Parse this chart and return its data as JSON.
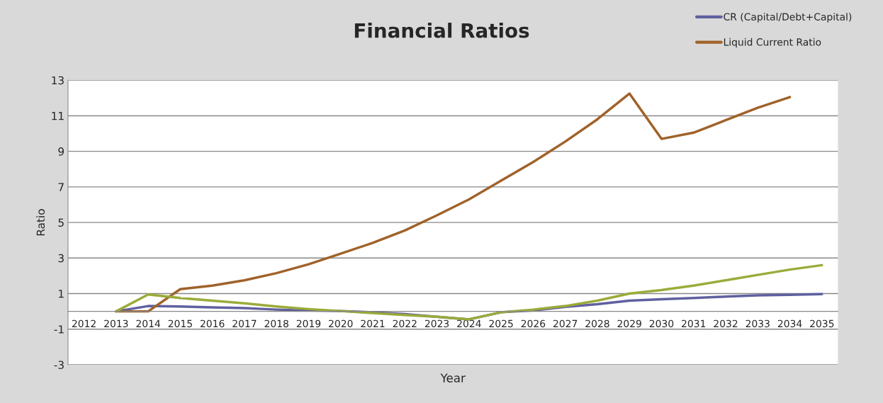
{
  "chart_data": {
    "type": "line",
    "title": "Financial Ratios",
    "xlabel": "Year",
    "ylabel": "Ratio",
    "categories": [
      "2012",
      "2013",
      "2014",
      "2015",
      "2016",
      "2017",
      "2018",
      "2019",
      "2020",
      "2021",
      "2022",
      "2023",
      "2024",
      "2025",
      "2026",
      "2027",
      "2028",
      "2029",
      "2030",
      "2031",
      "2032",
      "2033",
      "2034",
      "2035"
    ],
    "series": [
      {
        "name": "CR (Capital/Debt+Capital)",
        "color": "#6060a0",
        "values": [
          null,
          0,
          0.3,
          0.27,
          0.22,
          0.18,
          0.1,
          0.05,
          0.02,
          -0.05,
          -0.15,
          -0.3,
          -0.45,
          -0.05,
          0.05,
          0.25,
          0.4,
          0.6,
          0.68,
          0.75,
          0.83,
          0.9,
          0.93,
          0.97
        ]
      },
      {
        "name": "Liquid Current Ratio",
        "color": "#a0622a",
        "values": [
          null,
          0,
          0,
          1.25,
          1.45,
          1.75,
          2.15,
          2.65,
          3.25,
          3.85,
          4.55,
          5.4,
          6.3,
          7.35,
          8.4,
          9.55,
          10.8,
          12.25,
          9.7,
          10.05,
          10.75,
          11.45,
          12.05,
          null
        ]
      },
      {
        "color": "#9bab3a",
        "values": [
          null,
          0,
          0.95,
          0.75,
          0.6,
          0.45,
          0.27,
          0.13,
          0.02,
          -0.1,
          -0.2,
          -0.3,
          -0.45,
          -0.05,
          0.1,
          0.3,
          0.6,
          1.0,
          1.2,
          1.45,
          1.75,
          2.05,
          2.35,
          2.6
        ]
      }
    ],
    "ylim": [
      -3,
      13
    ],
    "yticks": [
      -3,
      -1,
      1,
      3,
      5,
      7,
      9,
      11,
      13
    ],
    "grid": "y",
    "legend": "top right"
  }
}
